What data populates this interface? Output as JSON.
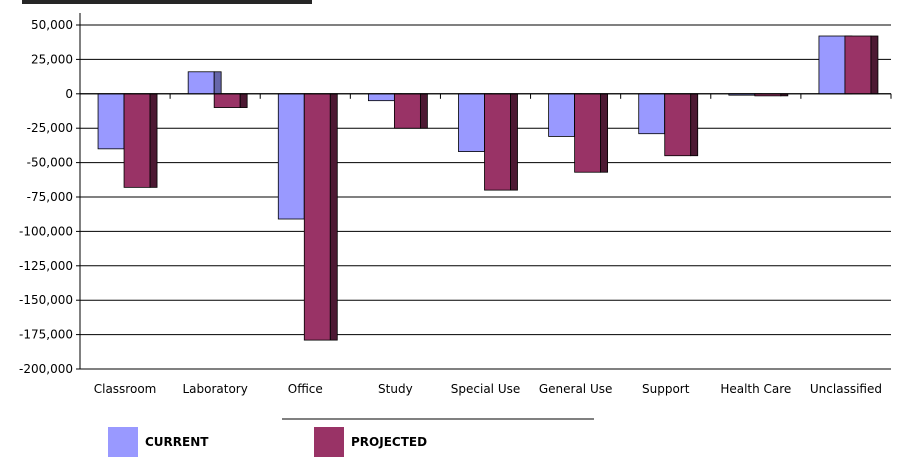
{
  "chart_data": {
    "type": "bar",
    "title": "",
    "xlabel": "",
    "ylabel": "",
    "categories": [
      "Classroom",
      "Laboratory",
      "Office",
      "Study",
      "Special Use",
      "General Use",
      "Support",
      "Health Care",
      "Unclassified"
    ],
    "series": [
      {
        "name": "CURRENT",
        "color": "#9999ff",
        "values": [
          -40000,
          16000,
          -91000,
          -5000,
          -42000,
          -31000,
          -29000,
          -1000,
          42000
        ]
      },
      {
        "name": "PROJECTED",
        "color": "#993366",
        "values": [
          -68000,
          -10000,
          -179000,
          -25000,
          -70000,
          -57000,
          -45000,
          -1500,
          42000
        ]
      }
    ],
    "ylim": [
      -200000,
      50000
    ],
    "yticks": [
      50000,
      25000,
      0,
      -25000,
      -50000,
      -75000,
      -100000,
      -125000,
      -150000,
      -175000,
      -200000
    ],
    "ytick_labels": [
      "50,000",
      "25,000",
      "0",
      "-25,000",
      "-50,000",
      "-75,000",
      "-100,000",
      "-125,000",
      "-150,000",
      "-175,000",
      "-200,000"
    ],
    "grid": true,
    "legend_position": "bottom-left"
  }
}
